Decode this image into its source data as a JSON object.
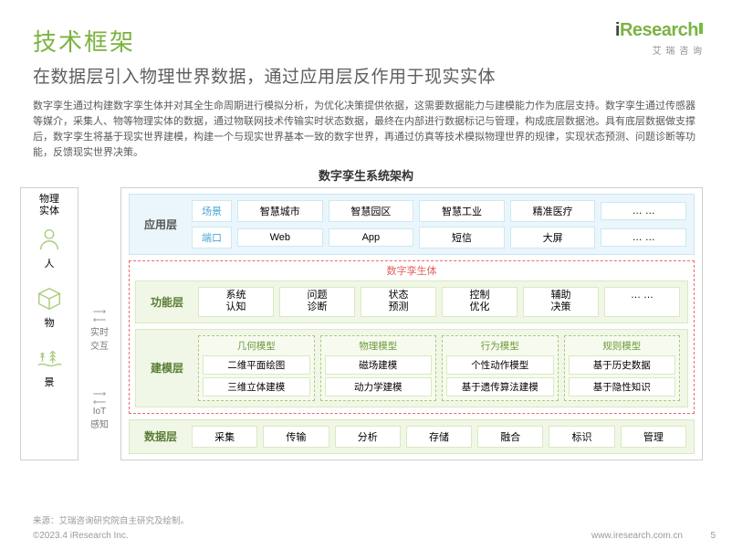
{
  "colors": {
    "title_green": "#7cb342",
    "subtitle_gray": "#5e5e5e",
    "body_gray": "#5a5a5a",
    "app_bg": "#eaf6fc",
    "app_border": "#c9e7f4",
    "app_row_lbl": "#4aa8d8",
    "green_bg": "#f0f7e6",
    "green_border": "#d9eac2",
    "twin_red": "#e26060",
    "icon_green": "#a8cc7a"
  },
  "header": {
    "title": "技术框架",
    "subtitle": "在数据层引入物理世界数据，通过应用层反作用于现实实体"
  },
  "logo": {
    "text_i": "i",
    "text_rest": "Research",
    "sub": "艾 瑞 咨 询"
  },
  "body_text": "数字孪生通过构建数字孪生体并对其全生命周期进行模拟分析，为优化决策提供依据，这需要数据能力与建模能力作为底层支持。数字孪生通过传感器等媒介，采集人、物等物理实体的数据，通过物联网技术传输实时状态数据，最终在内部进行数据标记与管理，构成底层数据池。具有底层数据做支撑后，数字孪生将基于现实世界建模，构建一个与现实世界基本一致的数字世界，再通过仿真等技术模拟物理世界的规律，实现状态预测、问题诊断等功能，反馈现实世界决策。",
  "diagram_title": "数字孪生系统架构",
  "entity": {
    "label": "物理\n实体",
    "items": [
      {
        "name": "人"
      },
      {
        "name": "物"
      },
      {
        "name": "景"
      }
    ]
  },
  "connectors": [
    {
      "line1": "实时",
      "line2": "交互"
    },
    {
      "line1": "IoT",
      "line2": "感知"
    }
  ],
  "app_layer": {
    "label": "应用层",
    "rows": [
      {
        "label": "场景",
        "chips": [
          "智慧城市",
          "智慧园区",
          "智慧工业",
          "精准医疗",
          "… …"
        ]
      },
      {
        "label": "端口",
        "chips": [
          "Web",
          "App",
          "短信",
          "大屏",
          "… …"
        ]
      }
    ]
  },
  "twin": {
    "title": "数字孪生体"
  },
  "func_layer": {
    "label": "功能层",
    "chips": [
      "系统\n认知",
      "问题\n诊断",
      "状态\n预测",
      "控制\n优化",
      "辅助\n决策",
      "… …"
    ]
  },
  "model_layer": {
    "label": "建模层",
    "groups": [
      {
        "title": "几何模型",
        "items": [
          "二维平面绘图",
          "三维立体建模"
        ]
      },
      {
        "title": "物理模型",
        "items": [
          "磁场建模",
          "动力学建模"
        ]
      },
      {
        "title": "行为模型",
        "items": [
          "个性动作模型",
          "基于遗传算法建模"
        ]
      },
      {
        "title": "规则模型",
        "items": [
          "基于历史数据",
          "基于隐性知识"
        ]
      }
    ]
  },
  "data_layer": {
    "label": "数据层",
    "chips": [
      "采集",
      "传输",
      "分析",
      "存储",
      "融合",
      "标识",
      "管理"
    ]
  },
  "footer": {
    "source": "来源：艾瑞咨询研究院自主研究及绘制。",
    "copyright": "©2023.4 iResearch Inc.",
    "url": "www.iresearch.com.cn",
    "page": "5"
  }
}
